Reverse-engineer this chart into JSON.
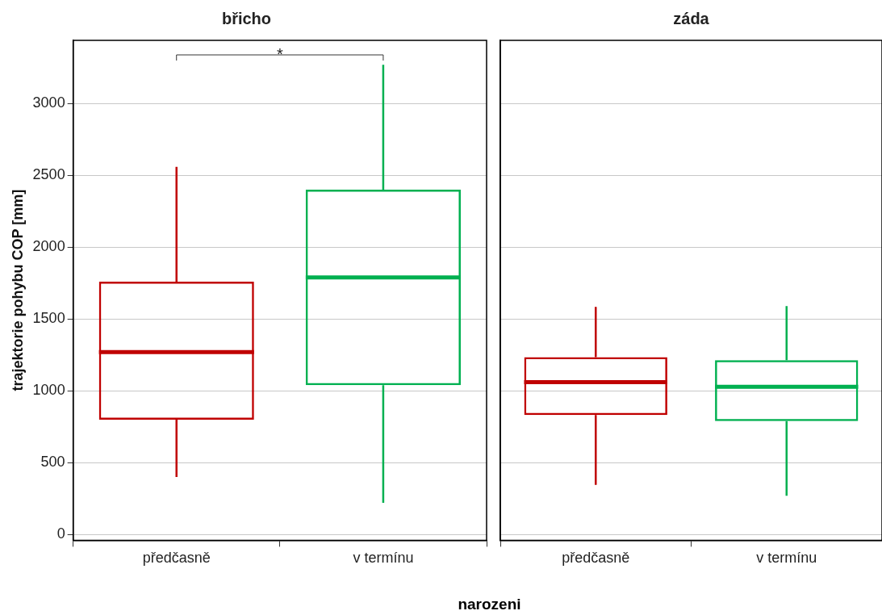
{
  "chart_data": [
    {
      "type": "box",
      "title": "břicho",
      "xlabel": "narozeni",
      "ylabel": "trajektorie pohybu COP [mm]",
      "categories": [
        "předčasně",
        "v termínu"
      ],
      "colors": [
        "#c00000",
        "#00b050"
      ],
      "boxes": [
        {
          "low": 400,
          "q1": 800,
          "median": 1270,
          "q3": 1760,
          "high": 2560
        },
        {
          "low": 220,
          "q1": 1040,
          "median": 1790,
          "q3": 2400,
          "high": 3270
        }
      ],
      "ylim": [
        -40,
        3440
      ],
      "yticks": [
        0,
        500,
        1000,
        1500,
        2000,
        2500,
        3000
      ],
      "grid": "y",
      "annotations": [
        "*"
      ],
      "legend": false
    },
    {
      "type": "box",
      "title": "záda",
      "categories": [
        "předčasně",
        "v termínu"
      ],
      "colors": [
        "#c00000",
        "#00b050"
      ],
      "boxes": [
        {
          "low": 345,
          "q1": 832,
          "median": 1060,
          "q3": 1235,
          "high": 1585
        },
        {
          "low": 270,
          "q1": 790,
          "median": 1028,
          "q3": 1214,
          "high": 1590
        }
      ],
      "ylim": [
        -40,
        3440
      ],
      "yticks": [
        0,
        500,
        1000,
        1500,
        2000,
        2500,
        3000
      ],
      "grid": "y",
      "tick_labels": "x",
      "legend": false
    }
  ]
}
